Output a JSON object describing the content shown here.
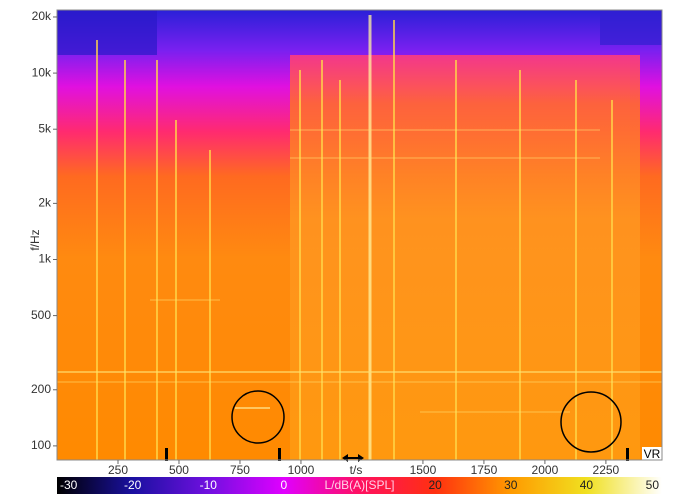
{
  "chart_data": {
    "type": "spectrogram",
    "x_label": "t/s",
    "y_label": "f/Hz",
    "xlim": [
      0,
      2480
    ],
    "xticks": [
      250,
      500,
      750,
      1000,
      1500,
      1750,
      2000,
      2250
    ],
    "ylim": [
      84,
      21800
    ],
    "log_y": true,
    "yticks": [
      100,
      200,
      500,
      {
        "value": 1000,
        "label": "1k"
      },
      {
        "value": 2000,
        "label": "2k"
      },
      {
        "value": 5000,
        "label": "5k"
      },
      {
        "value": 10000,
        "label": "10k"
      },
      {
        "value": 20000,
        "label": "20k"
      }
    ],
    "annotation": "VR",
    "colorbar": {
      "label": "L/dB(A)[SPL]",
      "lim": [
        -30,
        50
      ],
      "ticks": [
        -30,
        -20,
        -10,
        0,
        20,
        30,
        40,
        50
      ],
      "colors": [
        "#000000",
        "#1a10a0",
        "#7010e0",
        "#e000ff",
        "#ff1060",
        "#ff3010",
        "#ff9a00",
        "#f0e020",
        "#ffffff"
      ]
    }
  }
}
